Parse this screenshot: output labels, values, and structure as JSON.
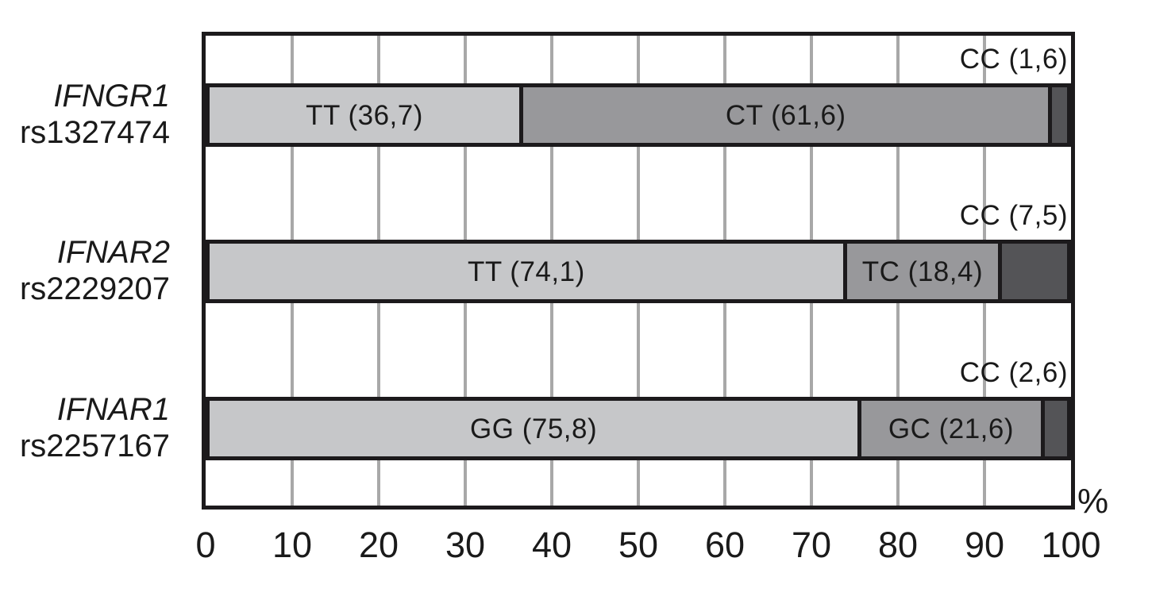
{
  "chart_data": {
    "type": "bar",
    "orientation": "horizontal",
    "stacked": true,
    "title": "",
    "xlabel": "",
    "ylabel": "",
    "unit_label": "%",
    "xlim": [
      0,
      100
    ],
    "x_ticks": [
      0,
      10,
      20,
      30,
      40,
      50,
      60,
      70,
      80,
      90,
      100
    ],
    "grid": true,
    "legend": false,
    "colors": {
      "light": "#c6c7c9",
      "medium": "#98989b",
      "dark": "#545457",
      "border": "#1c1a1c",
      "gridline": "#a8a8a8",
      "text": "#1a1a1a",
      "background": "#ffffff"
    },
    "rows": [
      {
        "gene": "IFNGR1",
        "snp": "rs1327474",
        "segments": [
          {
            "genotype": "TT",
            "value": 36.7,
            "label": "TT (36,7)",
            "shade": "light",
            "label_position": "inside"
          },
          {
            "genotype": "CT",
            "value": 61.6,
            "label": "CT (61,6)",
            "shade": "medium",
            "label_position": "inside"
          },
          {
            "genotype": "CC",
            "value": 1.6,
            "label": "CC (1,6)",
            "shade": "dark",
            "label_position": "above"
          }
        ]
      },
      {
        "gene": "IFNAR2",
        "snp": "rs2229207",
        "segments": [
          {
            "genotype": "TT",
            "value": 74.1,
            "label": "TT (74,1)",
            "shade": "light",
            "label_position": "inside"
          },
          {
            "genotype": "TC",
            "value": 18.4,
            "label": "TC (18,4)",
            "shade": "medium",
            "label_position": "inside"
          },
          {
            "genotype": "CC",
            "value": 7.5,
            "label": "CC (7,5)",
            "shade": "dark",
            "label_position": "above"
          }
        ]
      },
      {
        "gene": "IFNAR1",
        "snp": "rs2257167",
        "segments": [
          {
            "genotype": "GG",
            "value": 75.8,
            "label": "GG (75,8)",
            "shade": "light",
            "label_position": "inside"
          },
          {
            "genotype": "GC",
            "value": 21.6,
            "label": "GC (21,6)",
            "shade": "medium",
            "label_position": "inside"
          },
          {
            "genotype": "CC",
            "value": 2.6,
            "label": "CC (2,6)",
            "shade": "dark",
            "label_position": "above"
          }
        ]
      }
    ]
  }
}
